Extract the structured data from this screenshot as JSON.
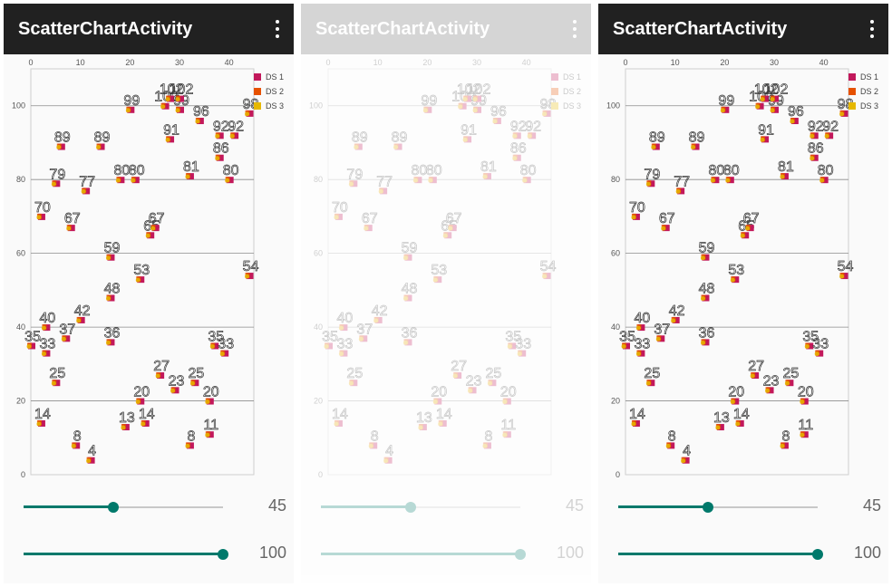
{
  "app": {
    "title": "ScatterChartActivity",
    "menu_icon": "overflow-menu-icon"
  },
  "colors": {
    "appbar": "#212121",
    "ds1": "#c2185b",
    "ds2": "#e65100",
    "ds3": "#e6b800",
    "accent": "#00796b"
  },
  "controls": {
    "slider1": {
      "value": 45,
      "max": 100,
      "label": "45"
    },
    "slider2": {
      "value": 100,
      "max": 100,
      "label": "100"
    }
  },
  "chart_data": {
    "type": "scatter",
    "xlim": [
      0,
      45
    ],
    "ylim": [
      0,
      110
    ],
    "x_ticks": [
      "0",
      "10",
      "20",
      "30",
      "40"
    ],
    "y_ticks": [
      "0",
      "20",
      "40",
      "60",
      "80",
      "100"
    ],
    "legend": [
      {
        "name": "DS 1",
        "color": "#c2185b"
      },
      {
        "name": "DS 2",
        "color": "#e65100"
      },
      {
        "name": "DS 3",
        "color": "#e6b800"
      }
    ],
    "legend_position": "top-right",
    "grid": "horizontal",
    "points": [
      {
        "x": 0,
        "y": 35
      },
      {
        "x": 2,
        "y": 14
      },
      {
        "x": 2,
        "y": 70
      },
      {
        "x": 3,
        "y": 33
      },
      {
        "x": 3,
        "y": 40
      },
      {
        "x": 5,
        "y": 25
      },
      {
        "x": 5,
        "y": 79
      },
      {
        "x": 6,
        "y": 89
      },
      {
        "x": 7,
        "y": 37
      },
      {
        "x": 8,
        "y": 67
      },
      {
        "x": 9,
        "y": 8
      },
      {
        "x": 10,
        "y": 42
      },
      {
        "x": 11,
        "y": 77
      },
      {
        "x": 12,
        "y": 4
      },
      {
        "x": 14,
        "y": 89
      },
      {
        "x": 16,
        "y": 59
      },
      {
        "x": 16,
        "y": 48
      },
      {
        "x": 16,
        "y": 36
      },
      {
        "x": 18,
        "y": 80
      },
      {
        "x": 19,
        "y": 13
      },
      {
        "x": 20,
        "y": 99
      },
      {
        "x": 21,
        "y": 80
      },
      {
        "x": 22,
        "y": 53
      },
      {
        "x": 22,
        "y": 20
      },
      {
        "x": 23,
        "y": 14
      },
      {
        "x": 24,
        "y": 65
      },
      {
        "x": 25,
        "y": 67
      },
      {
        "x": 26,
        "y": 27
      },
      {
        "x": 27,
        "y": 100
      },
      {
        "x": 28,
        "y": 102
      },
      {
        "x": 28,
        "y": 91
      },
      {
        "x": 29,
        "y": 23
      },
      {
        "x": 30,
        "y": 99
      },
      {
        "x": 30,
        "y": 102
      },
      {
        "x": 32,
        "y": 8
      },
      {
        "x": 32,
        "y": 81
      },
      {
        "x": 33,
        "y": 25
      },
      {
        "x": 34,
        "y": 96
      },
      {
        "x": 36,
        "y": 20
      },
      {
        "x": 36,
        "y": 11
      },
      {
        "x": 37,
        "y": 35
      },
      {
        "x": 38,
        "y": 92
      },
      {
        "x": 38,
        "y": 86
      },
      {
        "x": 39,
        "y": 33
      },
      {
        "x": 40,
        "y": 80
      },
      {
        "x": 41,
        "y": 92
      },
      {
        "x": 44,
        "y": 54
      },
      {
        "x": 44,
        "y": 98
      }
    ]
  }
}
